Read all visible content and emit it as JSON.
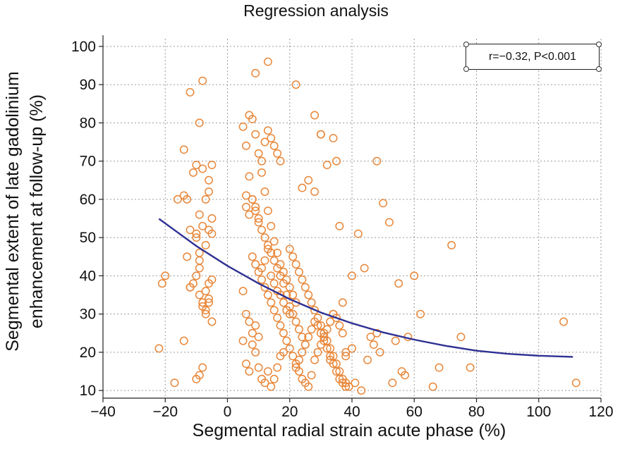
{
  "chart_data": {
    "type": "scatter",
    "title": "Regression analysis",
    "xlabel": "Segmental radial strain acute phase (%)",
    "ylabel_lines": [
      "Segmental extent of late gadolinium",
      "enhancement at follow-up (%)"
    ],
    "annotation": "r=−0.32, P<0.001",
    "xlim": [
      -40,
      120
    ],
    "ylim": [
      8,
      102
    ],
    "xticks": [
      -40,
      -20,
      0,
      20,
      40,
      60,
      80,
      100,
      120
    ],
    "yticks": [
      10,
      20,
      30,
      40,
      50,
      60,
      70,
      80,
      90,
      100
    ],
    "grid": true,
    "marker_color": "#e8873a",
    "fit_color": "#2e3192",
    "fit_curve": {
      "x": [
        -22,
        -10,
        0,
        10,
        20,
        30,
        40,
        50,
        60,
        70,
        80,
        90,
        100,
        111
      ],
      "y": [
        54.9,
        47.8,
        42.6,
        38.0,
        33.9,
        30.4,
        27.6,
        25.2,
        23.3,
        21.7,
        20.4,
        19.6,
        19.1,
        18.8
      ]
    },
    "points": {
      "x": [
        -22,
        -20,
        -21,
        -17,
        -16,
        -14,
        -13,
        -12,
        -11,
        -10,
        -9,
        -8,
        -7,
        -6,
        -5,
        -14,
        -9,
        -8,
        -7,
        -6,
        -5,
        -8,
        -10,
        -11,
        -12,
        -13,
        -9,
        -7,
        -6,
        -5,
        -14,
        -12,
        -10,
        -9,
        -8,
        -7,
        -6,
        -5,
        -10,
        -9,
        -8,
        -7,
        -6,
        -9,
        -8,
        -10,
        -5,
        -12,
        -6,
        -9,
        5,
        6,
        7,
        8,
        9,
        10,
        11,
        12,
        13,
        14,
        15,
        16,
        17,
        18,
        6,
        7,
        8,
        9,
        10,
        11,
        12,
        13,
        14,
        15,
        16,
        17,
        5,
        6,
        7,
        8,
        9,
        10,
        11,
        12,
        13,
        14,
        15,
        16,
        17,
        18,
        19,
        20,
        21,
        22,
        5,
        6,
        7,
        8,
        9,
        10,
        11,
        12,
        13,
        14,
        15,
        16,
        17,
        18,
        19,
        20,
        6,
        7,
        8,
        9,
        10,
        11,
        12,
        13,
        14,
        15,
        16,
        17,
        18,
        19,
        20,
        21,
        22,
        23,
        24,
        25,
        8,
        9,
        10,
        11,
        12,
        13,
        14,
        15,
        16,
        17,
        18,
        19,
        20,
        21,
        22,
        23,
        24,
        25,
        26,
        27,
        28,
        29,
        30,
        31,
        32,
        33,
        34,
        35,
        36,
        37,
        20,
        21,
        22,
        23,
        24,
        25,
        26,
        27,
        28,
        29,
        30,
        31,
        32,
        33,
        34,
        35,
        36,
        37,
        38,
        39,
        22,
        23,
        24,
        25,
        26,
        27,
        28,
        29,
        30,
        31,
        32,
        33,
        34,
        35,
        36,
        37,
        38,
        24,
        26,
        28,
        30,
        32,
        34,
        36,
        38,
        40,
        42,
        44,
        46,
        48,
        50,
        52,
        54,
        56,
        58,
        60,
        62,
        66,
        68,
        72,
        75,
        78,
        108,
        112,
        9,
        13,
        22,
        28,
        30,
        35,
        48,
        34,
        38,
        41,
        43,
        47,
        49,
        57,
        55,
        53,
        45,
        40,
        37,
        33
      ],
      "y": [
        21,
        40,
        38,
        12,
        60,
        61,
        60,
        88,
        67,
        69,
        80,
        91,
        60,
        62,
        69,
        73,
        56,
        53,
        48,
        52,
        55,
        68,
        50,
        38,
        37,
        45,
        44,
        36,
        33,
        28,
        23,
        37,
        40,
        35,
        32,
        30,
        34,
        39,
        13,
        14,
        16,
        31,
        38,
        42,
        33,
        51,
        51,
        52,
        65,
        46,
        23,
        17,
        15,
        22,
        20,
        16,
        13,
        12,
        15,
        11,
        13,
        16,
        19,
        20,
        61,
        66,
        60,
        58,
        54,
        70,
        75,
        78,
        76,
        74,
        72,
        70,
        79,
        74,
        82,
        81,
        77,
        72,
        67,
        62,
        57,
        53,
        49,
        46,
        43,
        41,
        39,
        37,
        35,
        33,
        36,
        30,
        28,
        25,
        27,
        24,
        42,
        44,
        47,
        40,
        38,
        36,
        35,
        33,
        31,
        30,
        58,
        56,
        60,
        57,
        55,
        52,
        50,
        48,
        46,
        44,
        42,
        40,
        38,
        35,
        32,
        30,
        28,
        26,
        24,
        22,
        45,
        43,
        41,
        39,
        37,
        35,
        33,
        31,
        29,
        27,
        25,
        23,
        21,
        19,
        17,
        15,
        13,
        12,
        11,
        14,
        18,
        20,
        22,
        24,
        26,
        28,
        30,
        29,
        27,
        25,
        47,
        45,
        43,
        41,
        39,
        37,
        35,
        33,
        31,
        29,
        27,
        25,
        23,
        21,
        19,
        17,
        15,
        13,
        12,
        11,
        16,
        18,
        20,
        22,
        24,
        26,
        28,
        27,
        25,
        23,
        21,
        19,
        17,
        15,
        13,
        12,
        11,
        63,
        65,
        62,
        77,
        69,
        76,
        53,
        19,
        40,
        51,
        42,
        24,
        25,
        59,
        54,
        23,
        15,
        24,
        40,
        30,
        11,
        16,
        48,
        24,
        16,
        28,
        12,
        93,
        96,
        90,
        82,
        77,
        70,
        70,
        30,
        20,
        12,
        10,
        22,
        20,
        14,
        38,
        12,
        18,
        21,
        33,
        18
      ]
    }
  }
}
